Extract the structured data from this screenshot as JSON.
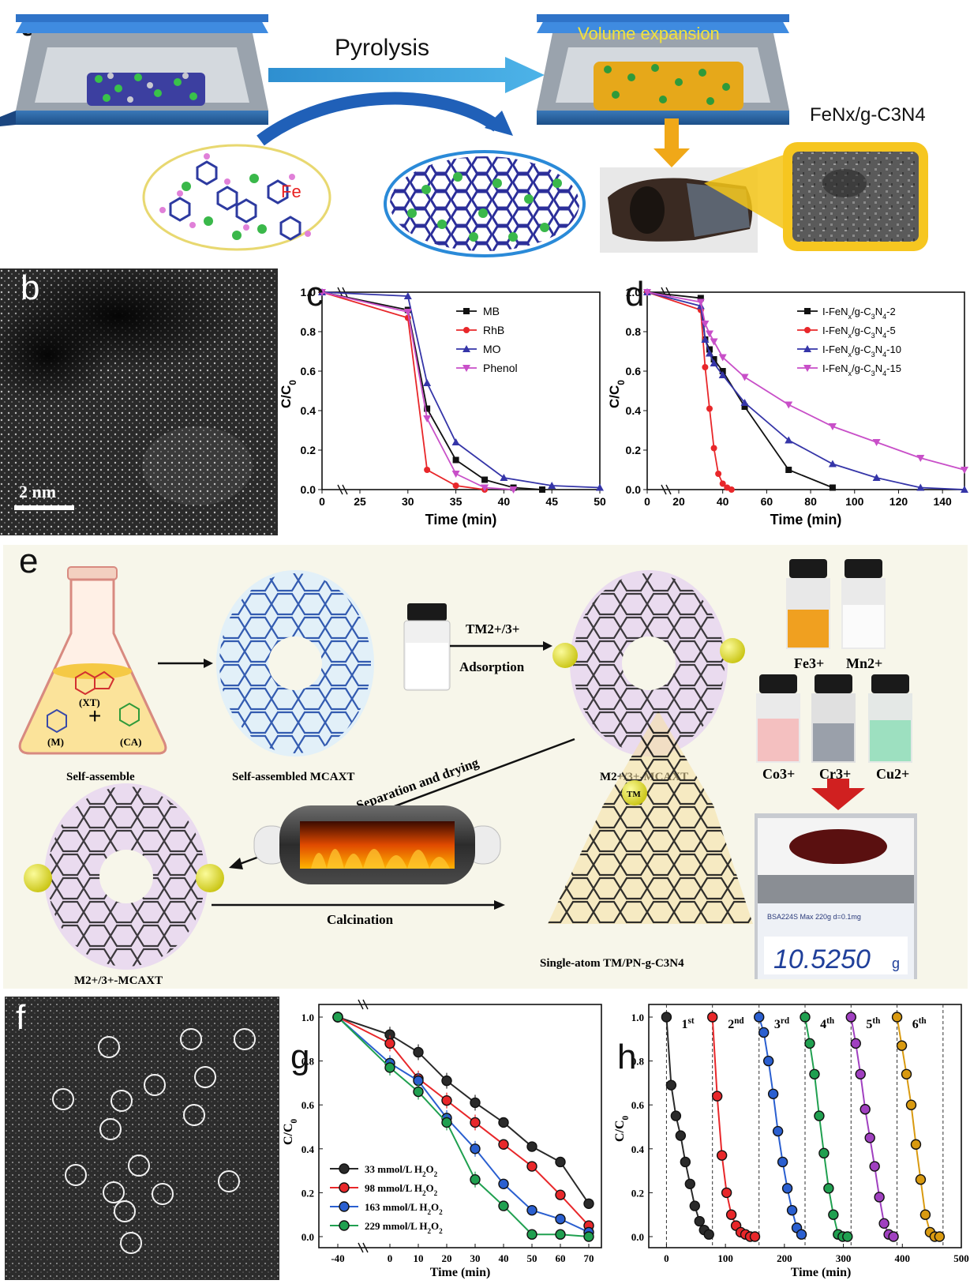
{
  "panel_a": {
    "label": "a",
    "pyrolysis": "Pyrolysis",
    "volume_expansion": "Volume expansion",
    "fe_label": "Fe",
    "product_label": "FeNx/g-C3N4"
  },
  "panel_b": {
    "label": "b",
    "scale_bar": "2 nm"
  },
  "panel_f": {
    "label": "f"
  },
  "panel_e": {
    "label": "e",
    "xt": "(XT)",
    "m": "(M)",
    "ca": "(CA)",
    "plus": "+",
    "self_assemble": "Self-assemble",
    "self_assembled": "Self-assembled MCAXT",
    "tm_ions": "TM2+/3+",
    "adsorption": "Adsorption",
    "m_mcaxt_top": "M2+/3+-MCAXT",
    "m_mcaxt_bottom": "M2+/3+-MCAXT",
    "separation": "Separation and drying",
    "calcination": "Calcination",
    "product": "Single-atom TM/PN-g-C3N4",
    "tm_center": "TM",
    "ion_fe": "Fe3+",
    "ion_mn": "Mn2+",
    "ion_co": "Co3+",
    "ion_cr": "Cr3+",
    "ion_cu": "Cu2+",
    "balance_model": "BSA224S  Max 220g d=0.1mg",
    "balance_reading": "10.5250",
    "balance_unit": "g"
  },
  "chart_data": [
    {
      "panel": "c",
      "type": "line",
      "xlabel": "Time (min)",
      "ylabel": "C/C0",
      "xlim": [
        0,
        50
      ],
      "ylim": [
        0,
        1.0
      ],
      "x_ticks": [
        "0",
        "25",
        "30",
        "35",
        "40",
        "45",
        "50"
      ],
      "y_ticks": [
        "0.0",
        "0.2",
        "0.4",
        "0.6",
        "0.8",
        "1.0"
      ],
      "legend": "top-right",
      "series": [
        {
          "name": "MB",
          "color": "#111111",
          "marker": "square",
          "x": [
            0,
            30,
            32,
            35,
            38,
            41,
            44
          ],
          "y": [
            1.0,
            0.91,
            0.41,
            0.15,
            0.05,
            0.01,
            0.0
          ]
        },
        {
          "name": "RhB",
          "color": "#e8272a",
          "marker": "circle",
          "x": [
            0,
            30,
            32,
            35,
            38
          ],
          "y": [
            1.0,
            0.87,
            0.1,
            0.02,
            0.0
          ]
        },
        {
          "name": "MO",
          "color": "#3535a8",
          "marker": "triangle-up",
          "x": [
            0,
            30,
            32,
            35,
            40,
            45,
            50
          ],
          "y": [
            1.0,
            0.98,
            0.54,
            0.24,
            0.06,
            0.02,
            0.01
          ]
        },
        {
          "name": "Phenol",
          "color": "#c84fc8",
          "marker": "triangle-down",
          "x": [
            0,
            30,
            32,
            35,
            38,
            41
          ],
          "y": [
            1.0,
            0.9,
            0.36,
            0.08,
            0.01,
            0.0
          ]
        }
      ]
    },
    {
      "panel": "d",
      "type": "line",
      "xlabel": "Time (min)",
      "ylabel": "C/C0",
      "xlim": [
        0,
        150
      ],
      "ylim": [
        0,
        1.0
      ],
      "x_ticks": [
        "0",
        "20",
        "40",
        "60",
        "80",
        "100",
        "120",
        "140"
      ],
      "y_ticks": [
        "0.0",
        "0.2",
        "0.4",
        "0.6",
        "0.8",
        "1.0"
      ],
      "legend": "top-right",
      "series": [
        {
          "name": "I-FeNx/g-C3N4-2",
          "color": "#111111",
          "marker": "square",
          "x": [
            0,
            30,
            32,
            34,
            36,
            40,
            50,
            70,
            90
          ],
          "y": [
            1.0,
            0.97,
            0.76,
            0.71,
            0.66,
            0.6,
            0.42,
            0.1,
            0.01
          ]
        },
        {
          "name": "I-FeNx/g-C3N4-5",
          "color": "#e8272a",
          "marker": "circle",
          "x": [
            0,
            30,
            32,
            34,
            36,
            38,
            40,
            42,
            44
          ],
          "y": [
            1.0,
            0.91,
            0.62,
            0.41,
            0.21,
            0.08,
            0.03,
            0.01,
            0.0
          ]
        },
        {
          "name": "I-FeNx/g-C3N4-10",
          "color": "#3535a8",
          "marker": "triangle-up",
          "x": [
            0,
            30,
            32,
            34,
            36,
            40,
            50,
            70,
            90,
            110,
            130,
            150
          ],
          "y": [
            1.0,
            0.93,
            0.76,
            0.69,
            0.64,
            0.58,
            0.44,
            0.25,
            0.13,
            0.06,
            0.01,
            0.0
          ]
        },
        {
          "name": "I-FeNx/g-C3N4-15",
          "color": "#c84fc8",
          "marker": "triangle-down",
          "x": [
            0,
            30,
            32,
            34,
            36,
            40,
            50,
            70,
            90,
            110,
            130,
            150
          ],
          "y": [
            1.0,
            0.95,
            0.84,
            0.79,
            0.75,
            0.67,
            0.57,
            0.43,
            0.32,
            0.24,
            0.16,
            0.1
          ]
        }
      ]
    },
    {
      "panel": "g",
      "type": "line",
      "xlabel": "Time (min)",
      "ylabel": "C/C0",
      "xlim": [
        -40,
        70
      ],
      "ylim": [
        0,
        1.0
      ],
      "x_ticks": [
        "-40",
        "0",
        "10",
        "20",
        "30",
        "40",
        "50",
        "60",
        "70"
      ],
      "y_ticks": [
        "0.0",
        "0.2",
        "0.4",
        "0.6",
        "0.8",
        "1.0"
      ],
      "legend": "bottom-left",
      "series": [
        {
          "name": "33  mmol/L H2O2",
          "color": "#2a2a2a",
          "x": [
            -40,
            0,
            10,
            20,
            30,
            40,
            50,
            60,
            70
          ],
          "y": [
            1.0,
            0.92,
            0.84,
            0.71,
            0.61,
            0.52,
            0.41,
            0.34,
            0.15
          ]
        },
        {
          "name": "98  mmol/L H2O2",
          "color": "#e8272a",
          "x": [
            -40,
            0,
            10,
            20,
            30,
            40,
            50,
            60,
            70
          ],
          "y": [
            1.0,
            0.88,
            0.72,
            0.62,
            0.52,
            0.42,
            0.32,
            0.19,
            0.05
          ]
        },
        {
          "name": "163  mmol/L H2O2",
          "color": "#2a5fd0",
          "x": [
            -40,
            0,
            10,
            20,
            30,
            40,
            50,
            60,
            70
          ],
          "y": [
            1.0,
            0.79,
            0.71,
            0.54,
            0.4,
            0.24,
            0.12,
            0.08,
            0.02
          ]
        },
        {
          "name": "229  mmol/L H2O2",
          "color": "#20a050",
          "x": [
            -40,
            0,
            10,
            20,
            30,
            40,
            50,
            60,
            70
          ],
          "y": [
            1.0,
            0.77,
            0.66,
            0.52,
            0.26,
            0.14,
            0.01,
            0.01,
            0.0
          ]
        }
      ]
    },
    {
      "panel": "h",
      "type": "line",
      "xlabel": "Time (min)",
      "ylabel": "C/C0",
      "xlim": [
        -30,
        500
      ],
      "ylim": [
        0,
        1.05
      ],
      "x_ticks": [
        "0",
        "100",
        "200",
        "300",
        "400",
        "500"
      ],
      "y_ticks": [
        "0.0",
        "0.2",
        "0.4",
        "0.6",
        "0.8",
        "1.0"
      ],
      "cycle_labels": [
        "1st",
        "2nd",
        "3rd",
        "4th",
        "5th",
        "6th"
      ],
      "cycle_boundaries": [
        0,
        78,
        157,
        235,
        313,
        391,
        469
      ],
      "series": [
        {
          "name": "1st",
          "color": "#2a2a2a",
          "x": [
            0,
            8,
            16,
            24,
            32,
            40,
            48,
            56,
            64,
            72
          ],
          "y": [
            1.0,
            0.69,
            0.55,
            0.46,
            0.34,
            0.24,
            0.14,
            0.07,
            0.03,
            0.01
          ]
        },
        {
          "name": "2nd",
          "color": "#e8272a",
          "x": [
            78,
            86,
            94,
            102,
            110,
            118,
            126,
            134,
            142,
            150
          ],
          "y": [
            1.0,
            0.64,
            0.37,
            0.2,
            0.1,
            0.05,
            0.02,
            0.01,
            0.0,
            0.0
          ]
        },
        {
          "name": "3rd",
          "color": "#2a5fd0",
          "x": [
            157,
            165,
            173,
            181,
            189,
            197,
            205,
            213,
            221,
            229
          ],
          "y": [
            1.0,
            0.93,
            0.8,
            0.65,
            0.48,
            0.34,
            0.22,
            0.12,
            0.04,
            0.01
          ]
        },
        {
          "name": "4th",
          "color": "#20a050",
          "x": [
            235,
            243,
            251,
            259,
            267,
            275,
            283,
            291,
            299,
            307
          ],
          "y": [
            1.0,
            0.88,
            0.74,
            0.55,
            0.38,
            0.22,
            0.1,
            0.01,
            0.0,
            0.0
          ]
        },
        {
          "name": "5th",
          "color": "#a040c0",
          "x": [
            313,
            321,
            329,
            337,
            345,
            353,
            361,
            369,
            377,
            385
          ],
          "y": [
            1.0,
            0.88,
            0.74,
            0.58,
            0.45,
            0.32,
            0.18,
            0.06,
            0.01,
            0.0
          ]
        },
        {
          "name": "6th",
          "color": "#d99a10",
          "x": [
            391,
            399,
            407,
            415,
            423,
            431,
            439,
            447,
            455,
            463
          ],
          "y": [
            1.0,
            0.87,
            0.74,
            0.6,
            0.42,
            0.26,
            0.1,
            0.02,
            0.0,
            0.0
          ]
        }
      ]
    }
  ]
}
